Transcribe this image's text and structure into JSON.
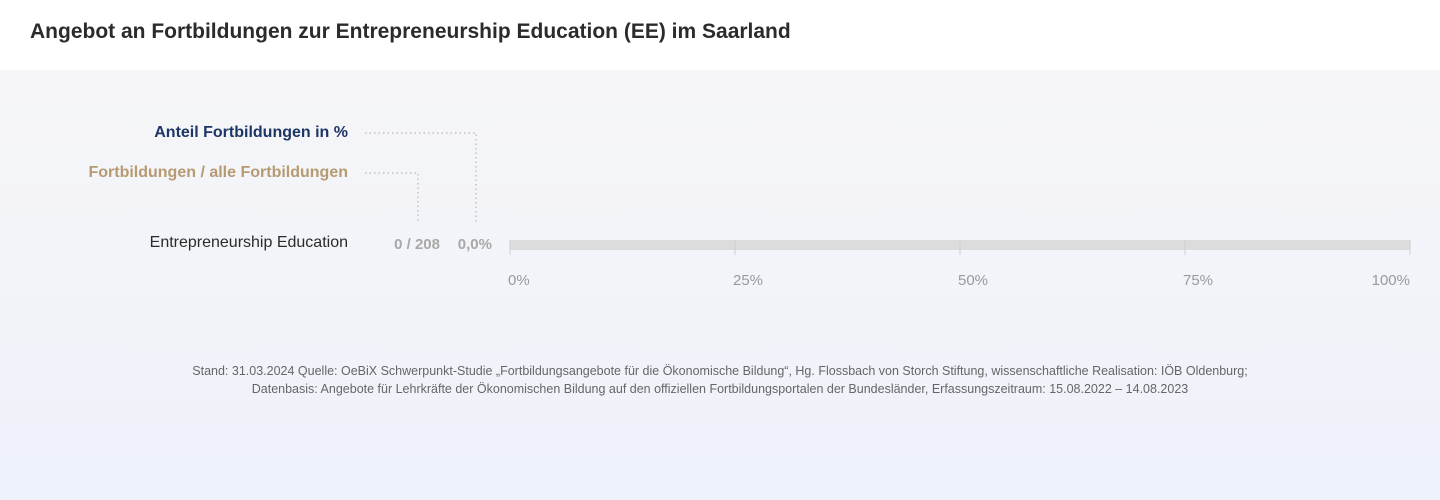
{
  "title": "Angebot an Fortbildungen zur Entrepreneurship Education (EE) im Saarland",
  "legend": {
    "share_label": "Anteil Fortbildungen  in %",
    "count_label": "Fortbildungen / alle Fortbildungen",
    "share_color": "#1c3566",
    "count_color": "#b69a72"
  },
  "chart_data": {
    "type": "bar",
    "orientation": "horizontal",
    "title": "Angebot an Fortbildungen zur Entrepreneurship Education (EE) im Saarland",
    "categories": [
      "Entrepreneurship Education"
    ],
    "series": [
      {
        "name": "Anteil Fortbildungen  in %",
        "values": [
          0.0
        ],
        "value_labels": [
          "0,0%"
        ],
        "count_labels": [
          "0 / 208"
        ]
      }
    ],
    "xlim": [
      0,
      100
    ],
    "x_ticks": [
      "0%",
      "25%",
      "50%",
      "75%",
      "100%"
    ],
    "bar_color": "#1c3566",
    "track_color": "#dcdcdc",
    "grid": false
  },
  "source": {
    "line1": "Stand: 31.03.2024 Quelle: OeBiX Schwerpunkt-Studie „Fortbildungsangebote für die Ökonomische Bildung“, Hg. Flossbach von Storch Stiftung, wissenschaftliche Realisation: IÖB Oldenburg;",
    "line2": "Datenbasis: Angebote für Lehrkräfte der Ökonomischen Bildung auf den offiziellen Fortbildungsportalen der Bundesländer, Erfassungszeitraum: 15.08.2022 – 14.08.2023"
  }
}
